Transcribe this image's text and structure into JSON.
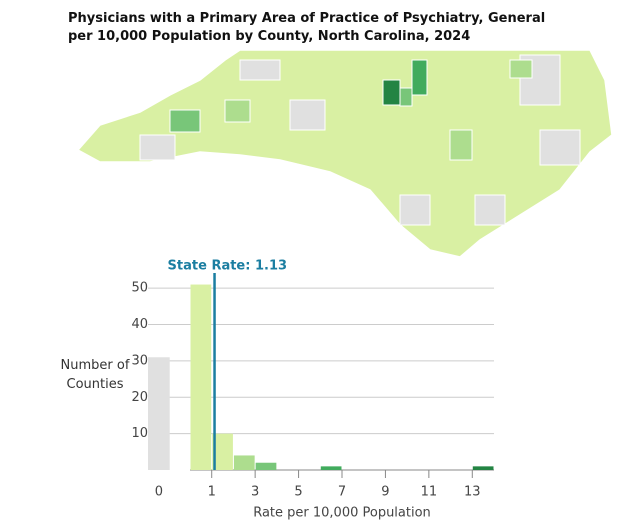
{
  "chart_data": {
    "type": "histogram",
    "title": "Physicians with a Primary Area of Practice of Psychiatry, General per 10,000 Population by County, North Carolina, 2024",
    "y_label": "Number of Counties",
    "x_label": "Rate per 10,000 Population",
    "zero_category": {
      "label": "0",
      "value": 31,
      "color": "#e0e0e0"
    },
    "bins": [
      0,
      1,
      2,
      3,
      4,
      5,
      6,
      7,
      8,
      9,
      10,
      11,
      12,
      13,
      14
    ],
    "values": [
      51,
      10,
      4,
      2,
      0,
      0,
      1,
      0,
      0,
      0,
      0,
      0,
      0,
      1
    ],
    "colors": [
      "#d9f0a3",
      "#d9f0a3",
      "#addd8e",
      "#78c679",
      "#78c679",
      "#78c679",
      "#41ab5d",
      "#41ab5d",
      "#238443",
      "#238443",
      "#238443",
      "#238443",
      "#238443",
      "#238443"
    ],
    "xlim": [
      0,
      14
    ],
    "xticks": [
      1,
      3,
      5,
      7,
      9,
      11,
      13
    ],
    "ylim": [
      0,
      55
    ],
    "yticks": [
      10,
      20,
      30,
      40,
      50
    ],
    "grid": true,
    "reference_line": {
      "value": 1.13,
      "label": "State Rate: 1.13",
      "color": "#1b7ea1"
    }
  }
}
